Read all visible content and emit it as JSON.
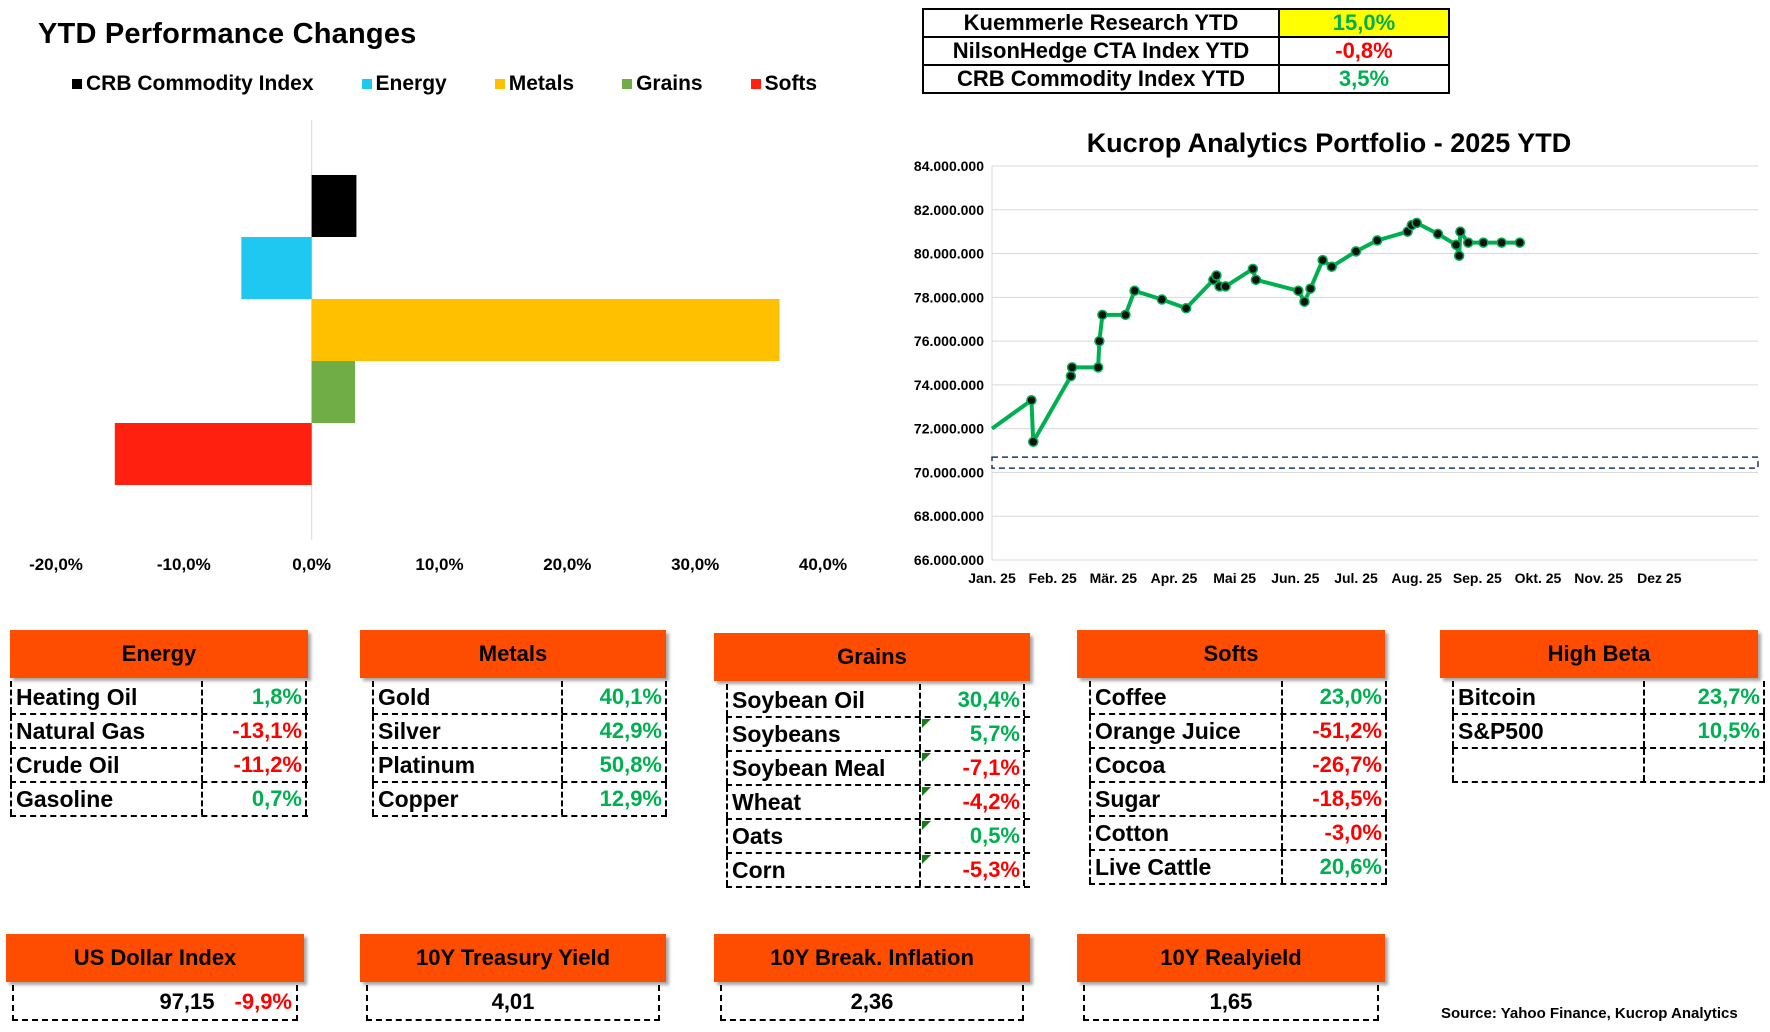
{
  "bar_chart": {
    "title": "YTD Performance Changes",
    "legend": [
      {
        "label": "CRB Commodity Index",
        "color": "#000000"
      },
      {
        "label": "Energy",
        "color": "#1ec8f0"
      },
      {
        "label": "Metals",
        "color": "#ffc000"
      },
      {
        "label": "Grains",
        "color": "#70ad47"
      },
      {
        "label": "Softs",
        "color": "#ff2010"
      }
    ],
    "x_ticks": [
      "-20,0%",
      "-10,0%",
      "0,0%",
      "10,0%",
      "20,0%",
      "30,0%",
      "40,0%"
    ]
  },
  "summary": [
    {
      "label": "Kuemmerle Research YTD",
      "value": "15,0%",
      "sign": "pos",
      "highlight": "#ffff00"
    },
    {
      "label": "NilsonHedge CTA Index YTD",
      "value": "-0,8%",
      "sign": "neg",
      "highlight": ""
    },
    {
      "label": "CRB Commodity Index YTD",
      "value": "3,5%",
      "sign": "pos",
      "highlight": ""
    }
  ],
  "line_chart": {
    "title": "Kucrop Analytics Portfolio - 2025 YTD",
    "y_ticks": [
      "66.000.000",
      "68.000.000",
      "70.000.000",
      "72.000.000",
      "74.000.000",
      "76.000.000",
      "78.000.000",
      "80.000.000",
      "82.000.000",
      "84.000.000"
    ],
    "x_ticks": [
      "Jan. 25",
      "Feb. 25",
      "Mär. 25",
      "Apr. 25",
      "Mai 25",
      "Jun. 25",
      "Jul. 25",
      "Aug. 25",
      "Sep. 25",
      "Okt. 25",
      "Nov. 25",
      "Dez 25"
    ]
  },
  "chart_data": [
    {
      "type": "bar",
      "orientation": "horizontal",
      "title": "YTD Performance Changes",
      "categories": [
        "CRB Commodity Index",
        "Energy",
        "Metals",
        "Grains",
        "Softs"
      ],
      "values": [
        3.5,
        -5.5,
        36.6,
        3.4,
        -15.4
      ],
      "colors": [
        "#000000",
        "#1ec8f0",
        "#ffc000",
        "#70ad47",
        "#ff2010"
      ],
      "xlim": [
        -20,
        40
      ],
      "legend_position": "top"
    },
    {
      "type": "line",
      "title": "Kucrop Analytics Portfolio - 2025 YTD",
      "ylim": [
        66000000,
        84000000
      ],
      "xlim": [
        0,
        12
      ],
      "grid": "horizontal",
      "series": [
        {
          "color": "#00b050",
          "points": [
            [
              0.0,
              72000000
            ],
            [
              0.65,
              73300000
            ],
            [
              0.68,
              71400000
            ],
            [
              1.3,
              74400000
            ],
            [
              1.32,
              74800000
            ],
            [
              1.75,
              74800000
            ],
            [
              1.77,
              76000000
            ],
            [
              1.82,
              77200000
            ],
            [
              2.2,
              77200000
            ],
            [
              2.35,
              78300000
            ],
            [
              2.8,
              77900000
            ],
            [
              3.2,
              77500000
            ],
            [
              3.65,
              78800000
            ],
            [
              3.7,
              79000000
            ],
            [
              3.75,
              78500000
            ],
            [
              3.85,
              78500000
            ],
            [
              4.3,
              79300000
            ],
            [
              4.35,
              78800000
            ],
            [
              5.05,
              78300000
            ],
            [
              5.15,
              77800000
            ],
            [
              5.25,
              78400000
            ],
            [
              5.45,
              79700000
            ],
            [
              5.6,
              79400000
            ],
            [
              6.0,
              80100000
            ],
            [
              6.35,
              80600000
            ],
            [
              6.85,
              81000000
            ],
            [
              6.92,
              81300000
            ],
            [
              7.0,
              81400000
            ],
            [
              7.35,
              80900000
            ],
            [
              7.65,
              80400000
            ],
            [
              7.7,
              79900000
            ],
            [
              7.72,
              81000000
            ],
            [
              7.85,
              80500000
            ],
            [
              8.1,
              80500000
            ],
            [
              8.4,
              80500000
            ],
            [
              8.7,
              80500000
            ]
          ]
        },
        {
          "style": "dashed",
          "color": "#1f3864",
          "points": [
            [
              0,
              70700000
            ],
            [
              12,
              70700000
            ],
            [
              12,
              70200000
            ],
            [
              0,
              70200000
            ]
          ]
        }
      ]
    }
  ],
  "categories": [
    {
      "key": "energy",
      "title": "Energy",
      "rows": [
        {
          "name": "Heating Oil",
          "value": "1,8%",
          "sign": "pos"
        },
        {
          "name": "Natural Gas",
          "value": "-13,1%",
          "sign": "neg"
        },
        {
          "name": "Crude Oil",
          "value": "-11,2%",
          "sign": "neg"
        },
        {
          "name": "Gasoline",
          "value": "0,7%",
          "sign": "pos"
        }
      ]
    },
    {
      "key": "metals",
      "title": "Metals",
      "rows": [
        {
          "name": "Gold",
          "value": "40,1%",
          "sign": "pos"
        },
        {
          "name": "Silver",
          "value": "42,9%",
          "sign": "pos"
        },
        {
          "name": "Platinum",
          "value": "50,8%",
          "sign": "pos"
        },
        {
          "name": "Copper",
          "value": "12,9%",
          "sign": "pos"
        }
      ]
    },
    {
      "key": "grains",
      "title": "Grains",
      "rows": [
        {
          "name": "Soybean Oil",
          "value": "30,4%",
          "sign": "pos"
        },
        {
          "name": "Soybeans",
          "value": "5,7%",
          "sign": "pos"
        },
        {
          "name": "Soybean Meal",
          "value": "-7,1%",
          "sign": "neg"
        },
        {
          "name": "Wheat",
          "value": "-4,2%",
          "sign": "neg"
        },
        {
          "name": "Oats",
          "value": "0,5%",
          "sign": "pos"
        },
        {
          "name": "Corn",
          "value": "-5,3%",
          "sign": "neg"
        }
      ]
    },
    {
      "key": "softs",
      "title": "Softs",
      "rows": [
        {
          "name": "Coffee",
          "value": "23,0%",
          "sign": "pos"
        },
        {
          "name": "Orange Juice",
          "value": "-51,2%",
          "sign": "neg"
        },
        {
          "name": "Cocoa",
          "value": "-26,7%",
          "sign": "neg"
        },
        {
          "name": "Sugar",
          "value": "-18,5%",
          "sign": "neg"
        },
        {
          "name": "Cotton",
          "value": "-3,0%",
          "sign": "neg"
        },
        {
          "name": "Live Cattle",
          "value": "20,6%",
          "sign": "pos"
        }
      ]
    },
    {
      "key": "highbeta",
      "title": "High Beta",
      "rows": [
        {
          "name": "Bitcoin",
          "value": "23,7%",
          "sign": "pos"
        },
        {
          "name": "S&P500",
          "value": "10,5%",
          "sign": "pos"
        },
        {
          "name": "",
          "value": "",
          "sign": ""
        }
      ]
    }
  ],
  "indicators": [
    {
      "title": "US Dollar Index",
      "value": "97,15",
      "change": "-9,9%",
      "sign": "neg"
    },
    {
      "title": "10Y Treasury Yield",
      "value": "4,01",
      "change": "",
      "sign": ""
    },
    {
      "title": "10Y Break. Inflation",
      "value": "2,36",
      "change": "",
      "sign": ""
    },
    {
      "title": "10Y Realyield",
      "value": "1,65",
      "change": "",
      "sign": ""
    }
  ],
  "source": "Source: Yahoo Finance, Kucrop Analytics"
}
